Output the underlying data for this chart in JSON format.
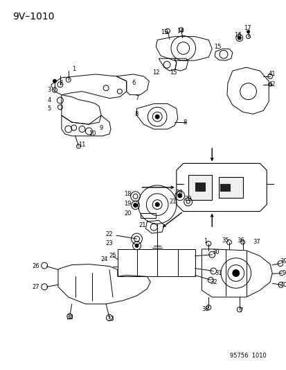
{
  "title": "9V–1010",
  "footer": "95756  1010",
  "bg_color": "#ffffff",
  "fig_width": 4.14,
  "fig_height": 5.33,
  "dpi": 100,
  "title_fontsize": 10,
  "label_fontsize": 6.0
}
